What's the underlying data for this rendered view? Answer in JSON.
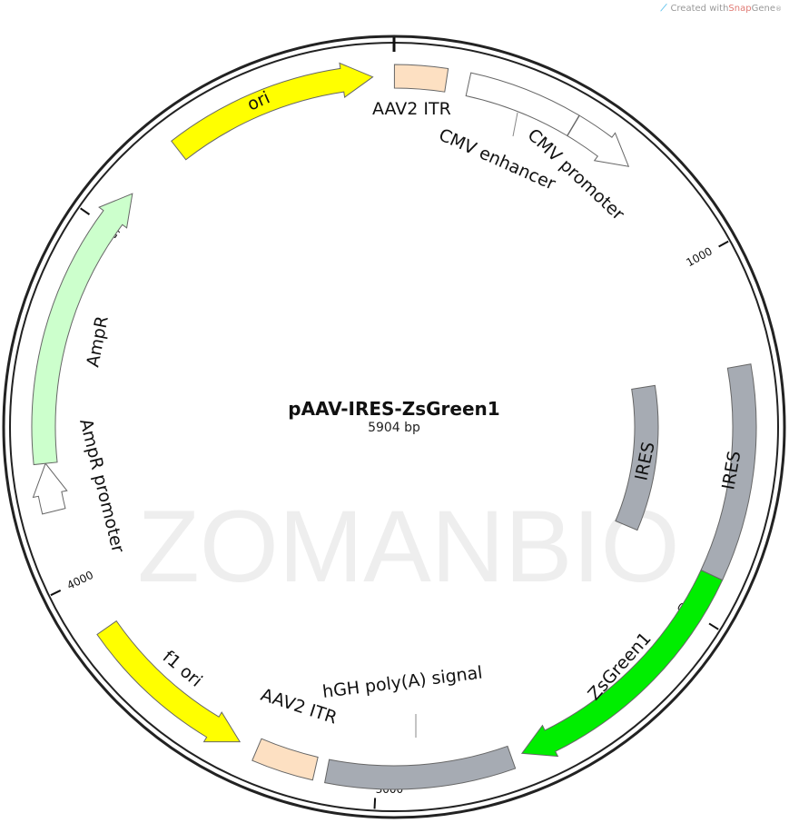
{
  "credit": {
    "prefix": "Created with ",
    "brand_a": "Snap",
    "brand_b": "Gene",
    "mark": "®"
  },
  "watermark": "ZOMANBIO",
  "plasmid": {
    "name": "pAAV-IRES-ZsGreen1",
    "size_label": "5904 bp",
    "length": 5904
  },
  "ticks": [
    {
      "bp": 1000,
      "label": "1000"
    },
    {
      "bp": 2000,
      "label": "2000"
    },
    {
      "bp": 3000,
      "label": "3000"
    },
    {
      "bp": 4000,
      "label": "4000"
    },
    {
      "bp": 5000,
      "label": "5000"
    }
  ],
  "features": [
    {
      "name": "AAV2 ITR",
      "start": 1,
      "end": 141,
      "color": "#fde0c2",
      "direction": "none",
      "lane": "outer"
    },
    {
      "name": "CMV enhancer",
      "start": 201,
      "end": 504,
      "color": "#ffffff",
      "direction": "none",
      "lane": "outer"
    },
    {
      "name": "CMV promoter",
      "start": 505,
      "end": 689,
      "color": "#ffffff",
      "direction": "forward",
      "lane": "outer"
    },
    {
      "name": "IRES",
      "start": 1328,
      "end": 1853,
      "color": "#a6abb3",
      "direction": "none",
      "lane": "inner"
    },
    {
      "name": "IRES",
      "start": 1312,
      "end": 1886,
      "color": "#a6abb3",
      "direction": "none",
      "lane": "outer"
    },
    {
      "name": "ZsGreen1",
      "start": 1886,
      "end": 2601,
      "color": "#00ee00",
      "direction": "forward",
      "lane": "outer"
    },
    {
      "name": "hGH poly(A) signal",
      "start": 2631,
      "end": 3133,
      "color": "#a6abb3",
      "direction": "none",
      "lane": "outer"
    },
    {
      "name": "AAV2 ITR",
      "start": 3165,
      "end": 3330,
      "color": "#fde0c2",
      "direction": "none",
      "lane": "outer"
    },
    {
      "name": "f1 ori",
      "start": 3380,
      "end": 3855,
      "color": "#ffff00",
      "direction": "reverse",
      "lane": "outer"
    },
    {
      "name": "AmpR promoter",
      "start": 4200,
      "end": 4330,
      "color": "#ffffff",
      "direction": "forward",
      "lane": "outer"
    },
    {
      "name": "AmpR",
      "start": 4330,
      "end": 5112,
      "color": "#ccffcc",
      "direction": "forward",
      "lane": "outer"
    },
    {
      "name": "ori",
      "start": 5282,
      "end": 5847,
      "color": "#ffff00",
      "direction": "forward",
      "lane": "outer"
    }
  ]
}
